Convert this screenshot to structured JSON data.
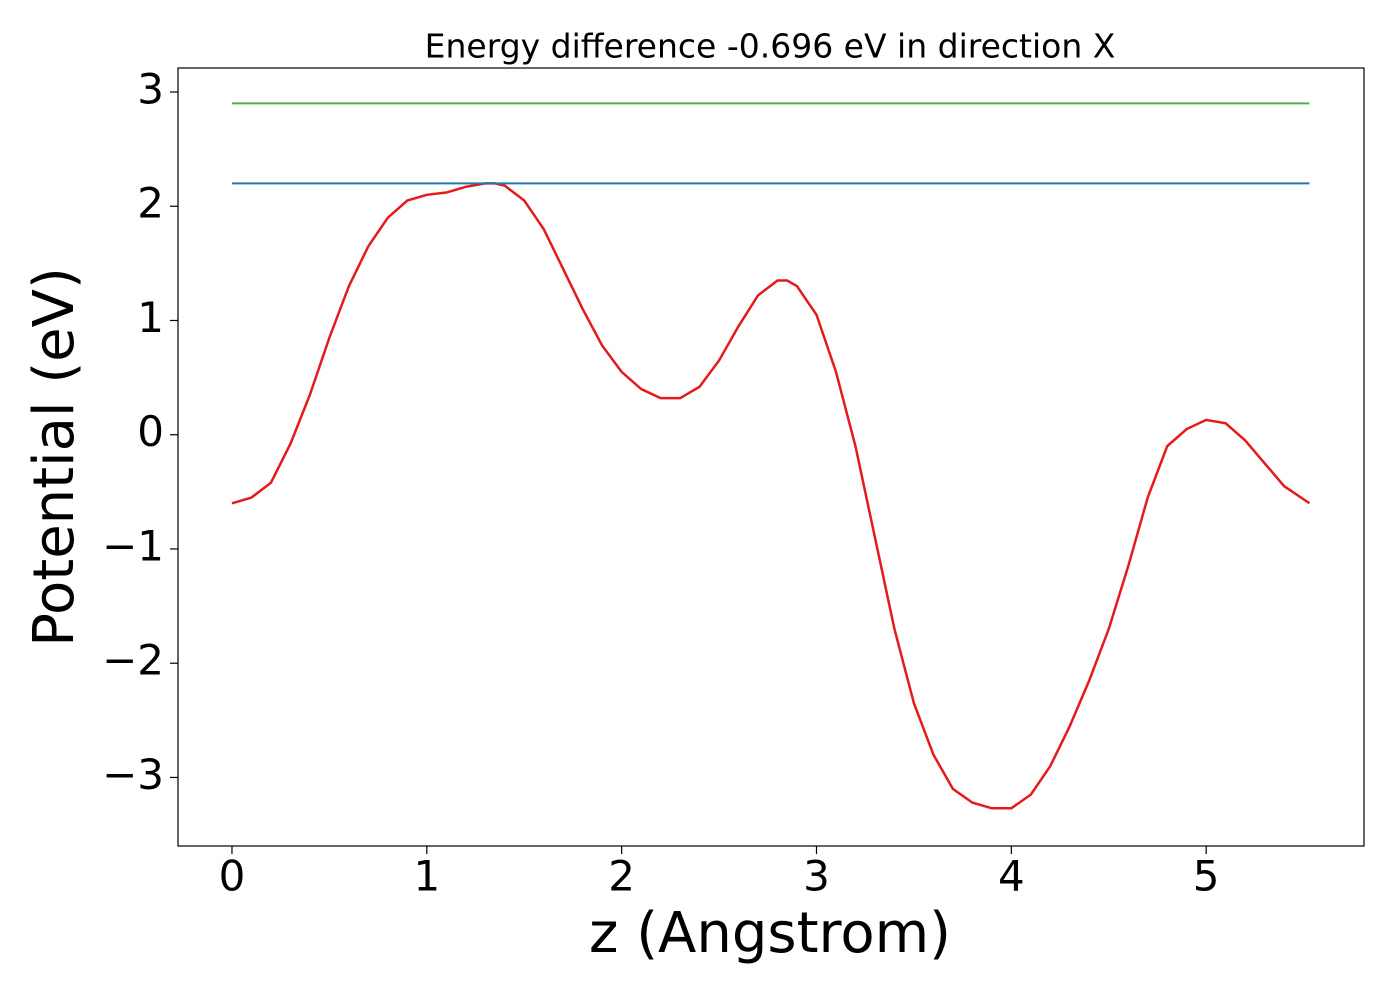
{
  "chart_data": {
    "type": "line",
    "title": "Energy difference -0.696 eV in direction X",
    "x_label": "z (Angstrom)",
    "y_label": "Potential (eV)",
    "xlim": [
      -0.277,
      5.81
    ],
    "ylim": [
      -3.6,
      3.21
    ],
    "xticks": [
      0,
      1,
      2,
      3,
      4,
      5
    ],
    "yticks": [
      {
        "value": -3,
        "label": "−3"
      },
      {
        "value": -2,
        "label": "−2"
      },
      {
        "value": -1,
        "label": "−1"
      },
      0,
      1,
      2,
      3
    ],
    "grid": false,
    "series": [
      {
        "color": "#e41a1c",
        "x": [
          0,
          0.1,
          0.2,
          0.3,
          0.4,
          0.5,
          0.6,
          0.7,
          0.8,
          0.9,
          1.0,
          1.1,
          1.2,
          1.3,
          1.35,
          1.4,
          1.5,
          1.6,
          1.7,
          1.8,
          1.9,
          2.0,
          2.1,
          2.2,
          2.3,
          2.4,
          2.5,
          2.6,
          2.7,
          2.8,
          2.85,
          2.9,
          3.0,
          3.1,
          3.2,
          3.3,
          3.4,
          3.5,
          3.6,
          3.7,
          3.8,
          3.9,
          4.0,
          4.1,
          4.2,
          4.3,
          4.4,
          4.5,
          4.6,
          4.7,
          4.8,
          4.9,
          5.0,
          5.1,
          5.2,
          5.3,
          5.4,
          5.53
        ],
        "values": [
          -0.6,
          -0.55,
          -0.42,
          -0.08,
          0.35,
          0.85,
          1.3,
          1.65,
          1.9,
          2.05,
          2.1,
          2.12,
          2.17,
          2.2,
          2.2,
          2.18,
          2.05,
          1.8,
          1.45,
          1.1,
          0.78,
          0.55,
          0.4,
          0.32,
          0.32,
          0.42,
          0.65,
          0.95,
          1.22,
          1.35,
          1.35,
          1.3,
          1.05,
          0.55,
          -0.1,
          -0.9,
          -1.7,
          -2.35,
          -2.8,
          -3.1,
          -3.22,
          -3.27,
          -3.27,
          -3.15,
          -2.9,
          -2.55,
          -2.15,
          -1.7,
          -1.15,
          -0.55,
          -0.1,
          0.05,
          0.13,
          0.1,
          -0.05,
          -0.25,
          -0.45,
          -0.6
        ]
      },
      {
        "color": "#1f77b4",
        "x": [
          0,
          5.53
        ],
        "values": [
          2.2,
          2.2
        ]
      },
      {
        "color": "#4daf4a",
        "x": [
          0,
          5.53
        ],
        "values": [
          2.9,
          2.9
        ]
      }
    ]
  }
}
